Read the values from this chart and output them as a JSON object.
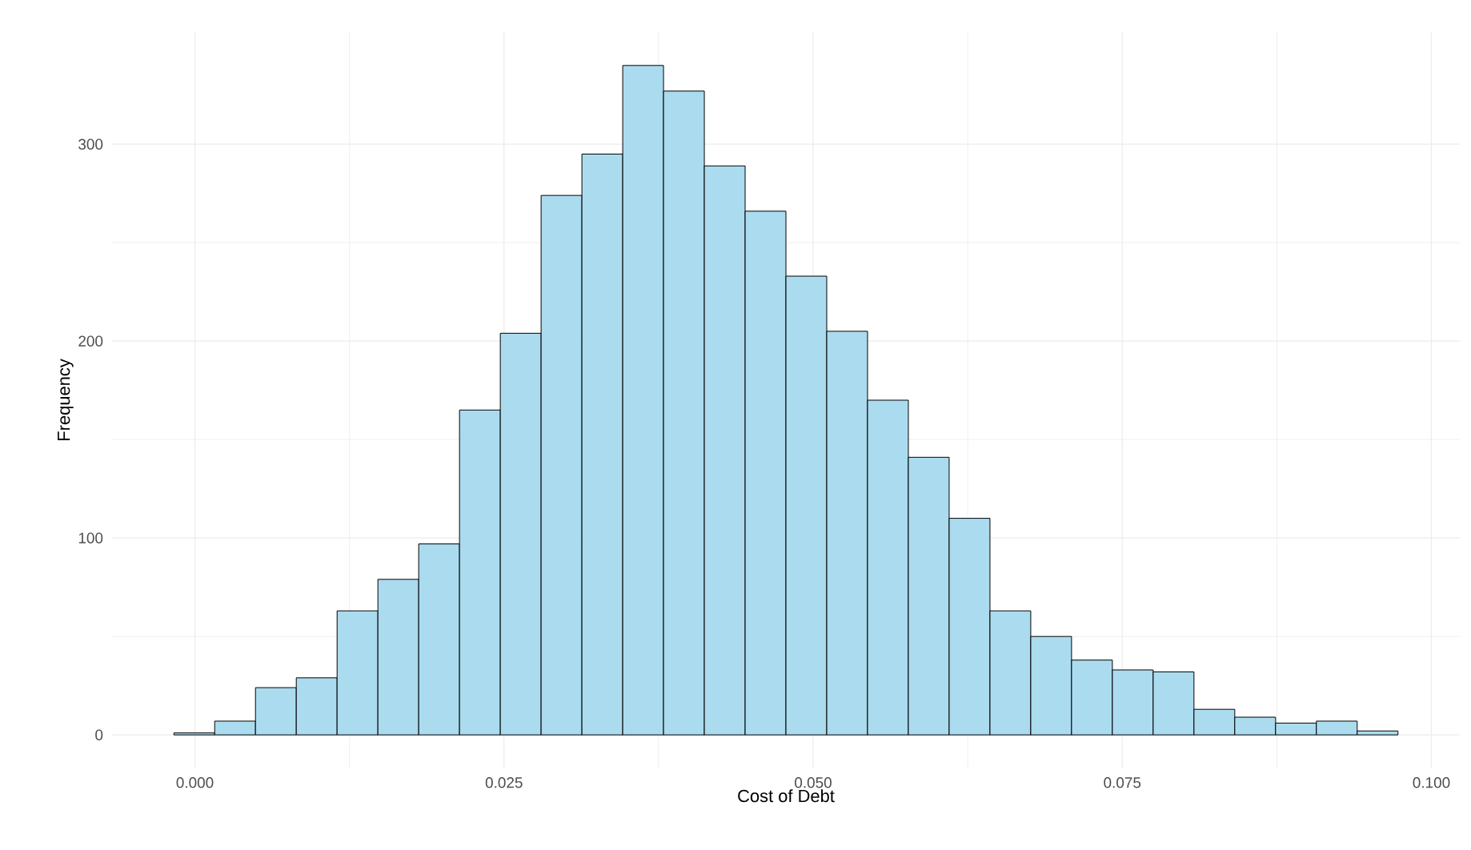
{
  "chart_data": {
    "type": "histogram",
    "xlabel": "Cost of Debt",
    "ylabel": "Frequency",
    "bins": [
      -0.0017,
      0.0016,
      0.0049,
      0.0082,
      0.0115,
      0.0148,
      0.0181,
      0.0214,
      0.0247,
      0.028,
      0.0313,
      0.0346,
      0.0379,
      0.0412,
      0.0445,
      0.0478,
      0.0511,
      0.0544,
      0.0577,
      0.061,
      0.0643,
      0.0676,
      0.0709,
      0.0742,
      0.0775,
      0.0808,
      0.0841,
      0.0874,
      0.0907,
      0.094,
      0.0973
    ],
    "values": [
      1,
      7,
      24,
      29,
      63,
      79,
      97,
      165,
      204,
      274,
      295,
      340,
      327,
      289,
      266,
      233,
      205,
      170,
      141,
      110,
      63,
      50,
      38,
      33,
      32,
      13,
      9,
      6,
      7,
      2
    ],
    "color": "#abdbee",
    "xlim": [
      -0.0067,
      0.1023
    ],
    "ylim": [
      -17,
      357
    ],
    "xticks": [
      {
        "value": 0,
        "label": "0.000"
      },
      {
        "value": 0.025,
        "label": "0.025"
      },
      {
        "value": 0.05,
        "label": "0.050"
      },
      {
        "value": 0.075,
        "label": "0.075"
      },
      {
        "value": 0.1,
        "label": "0.100"
      }
    ],
    "yticks": [
      0,
      100,
      200,
      300
    ],
    "grid": true
  }
}
